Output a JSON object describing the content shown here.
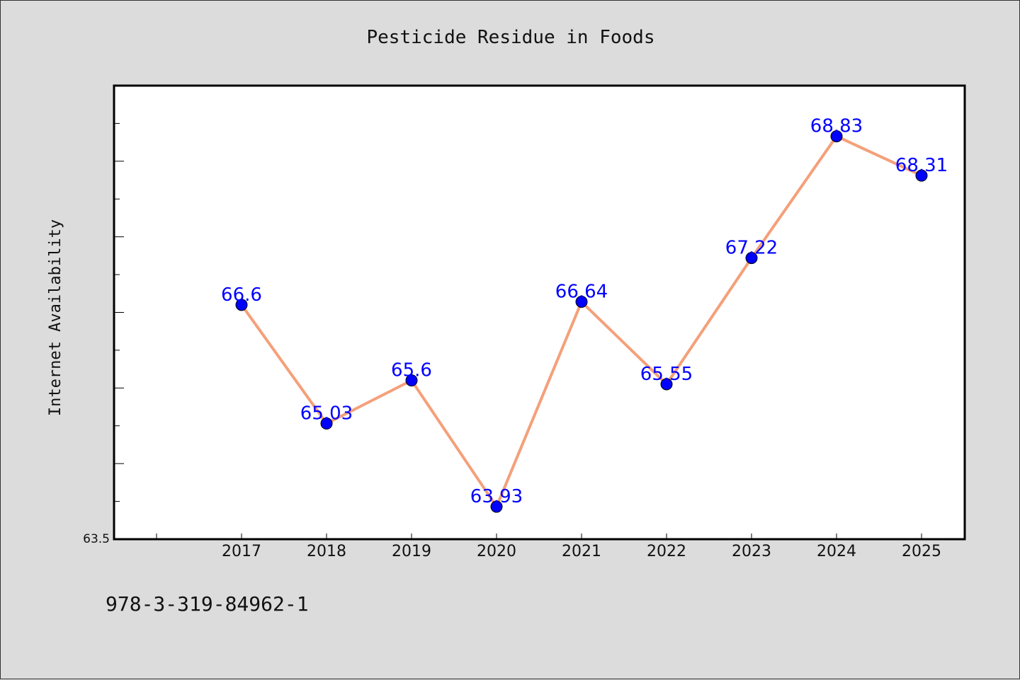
{
  "chart_data": {
    "type": "line",
    "title": "Pesticide Residue in Foods",
    "xlabel": "",
    "ylabel": "Internet Availability",
    "categories": [
      "2017",
      "2018",
      "2019",
      "2020",
      "2021",
      "2022",
      "2023",
      "2024",
      "2025"
    ],
    "series": [
      {
        "values": [
          66.6,
          65.03,
          65.6,
          63.93,
          66.64,
          65.55,
          67.22,
          68.83,
          68.31
        ],
        "labels": [
          "66.6",
          "65.03",
          "65.6",
          "63.93",
          "66.64",
          "65.55",
          "67.22",
          "68.83",
          "68.31"
        ],
        "line_color": "#f4a07a",
        "marker_color": "#0000ff"
      }
    ],
    "ylim": [
      63.5,
      69.5
    ],
    "y_tick_labels": [
      "63.5"
    ],
    "grid": false,
    "legend": "none"
  },
  "footer": {
    "isbn": "978-3-319-84962-1"
  },
  "colors": {
    "background": "#dcdcdc",
    "plot_background": "#ffffff",
    "line": "#f4a07a",
    "marker": "#0000ff",
    "label": "#0000ff"
  }
}
